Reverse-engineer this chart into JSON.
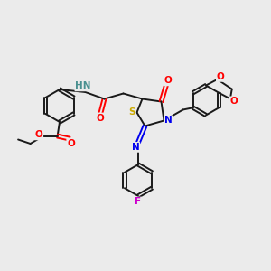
{
  "background_color": "#ebebeb",
  "bond_color": "#1a1a1a",
  "colors": {
    "N": "#0000ee",
    "O": "#ff0000",
    "S": "#ccaa00",
    "F": "#cc00cc",
    "H": "#4a9090",
    "C": "#1a1a1a"
  },
  "fig_width": 3.0,
  "fig_height": 3.0,
  "dpi": 100
}
